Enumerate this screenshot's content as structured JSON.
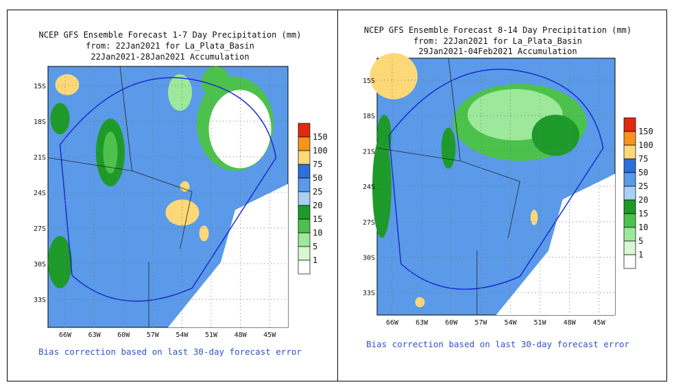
{
  "panels": [
    {
      "title_lines": [
        "NCEP GFS Ensemble Forecast 1-7 Day Precipitation (mm)",
        "from: 22Jan2021   for La_Plata_Basin",
        "22Jan2021-28Jan2021 Accumulation"
      ],
      "lat_labels": [
        "15S",
        "18S",
        "21S",
        "24S",
        "27S",
        "30S",
        "33S"
      ],
      "lon_labels": [
        "66W",
        "63W",
        "60W",
        "57W",
        "54W",
        "51W",
        "48W",
        "45W"
      ],
      "legend_labels": [
        "150",
        "100",
        "75",
        "50",
        "25",
        "20",
        "15",
        "10",
        "5",
        "1"
      ],
      "footer": "Bias correction based on last 30-day forecast error"
    },
    {
      "title_lines": [
        "NCEP GFS Ensemble Forecast 8-14 Day Precipitation (mm)",
        "from: 22Jan2021   for La_Plata_Basin",
        "29Jan2021-04Feb2021 Accumulation"
      ],
      "lat_labels": [
        "15S",
        "18S",
        "21S",
        "24S",
        "27S",
        "30S",
        "33S"
      ],
      "lon_labels": [
        "66W",
        "63W",
        "60W",
        "57W",
        "54W",
        "51W",
        "48W",
        "45W"
      ],
      "legend_labels": [
        "150",
        "100",
        "75",
        "50",
        "25",
        "20",
        "15",
        "10",
        "5",
        "1"
      ],
      "footer": "Bias correction based on last 30-day forecast error"
    }
  ]
}
